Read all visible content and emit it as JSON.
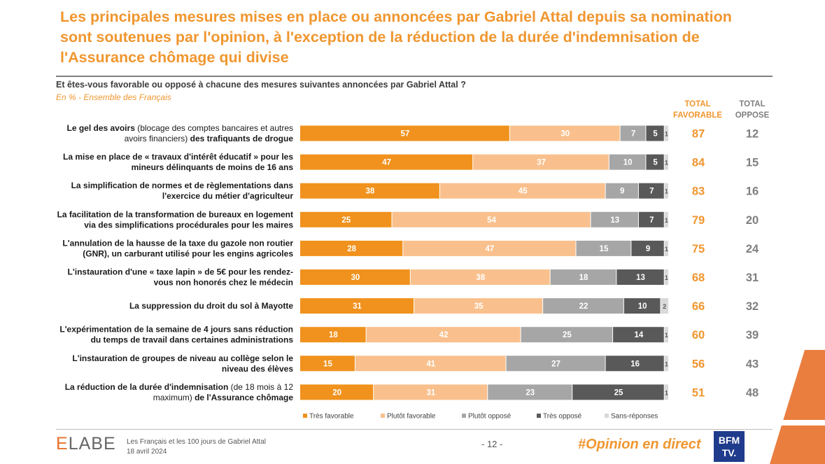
{
  "header": {
    "title": "Les principales mesures mises en place ou annoncées par Gabriel Attal depuis sa nomination sont soutenues par l'opinion, à l'exception de la réduction de la durée d'indemnisation de l'Assurance chômage qui divise",
    "question": "Et êtes-vous favorable ou opposé à chacune des mesures suivantes annoncées par Gabriel Attal ?",
    "base": "En % - Ensemble des Français"
  },
  "columns": {
    "total_favorable": "TOTAL FAVORABLE",
    "total_oppose": "TOTAL OPPOSE"
  },
  "colors": {
    "tres_favorable": "#f0921d",
    "plutot_favorable": "#f9c08d",
    "plutot_oppose": "#a6a6a6",
    "tres_oppose": "#595959",
    "sans_reponses": "#d9d9d9",
    "accent": "#f0962f"
  },
  "chart_data": {
    "type": "bar",
    "orientation": "horizontal",
    "stacked": true,
    "categories": [
      {
        "bold1": "Le gel des avoirs",
        "normal": " (blocage des comptes bancaires et autres avoirs financiers)",
        "bold2": " des trafiquants de drogue"
      },
      {
        "bold1": "La mise en place de « travaux d'intérêt éducatif » pour les mineurs délinquants de moins de 16 ans",
        "normal": "",
        "bold2": ""
      },
      {
        "bold1": "La simplification de normes et de règlementations dans l'exercice du métier d'agriculteur",
        "normal": "",
        "bold2": ""
      },
      {
        "bold1": "La facilitation de la transformation de bureaux en logement via des simplifications procédurales pour les maires",
        "normal": "",
        "bold2": ""
      },
      {
        "bold1": "L'annulation de la hausse de la taxe du gazole non routier (GNR), un carburant utilisé pour les engins agricoles",
        "normal": "",
        "bold2": ""
      },
      {
        "bold1": "L'instauration d'une « taxe lapin » de 5€ pour les rendez-vous non honorés chez le médecin",
        "normal": "",
        "bold2": ""
      },
      {
        "bold1": "La suppression du droit du sol à Mayotte",
        "normal": "",
        "bold2": ""
      },
      {
        "bold1": "L'expérimentation de la semaine de 4 jours sans réduction du temps de travail dans certaines administrations",
        "normal": "",
        "bold2": ""
      },
      {
        "bold1": "L'instauration de groupes de niveau au collège selon le niveau des élèves",
        "normal": "",
        "bold2": ""
      },
      {
        "bold1": "La réduction de la durée d'indemnisation",
        "normal": " (de 18 mois à 12 maximum)",
        "bold2": " de l'Assurance chômage"
      }
    ],
    "label_lines": [
      [
        [
          "Le gel des avoirs",
          "b"
        ],
        [
          " (blocage des comptes bancaires et autres",
          "n"
        ],
        [
          "|avoirs financiers)",
          "n"
        ],
        [
          " des trafiquants de drogue",
          "b"
        ]
      ],
      [
        [
          "La mise en place de « travaux d'intérêt éducatif » pour les",
          "b"
        ],
        [
          "|mineurs délinquants de moins de 16 ans",
          "b"
        ]
      ],
      [
        [
          "La simplification de normes et de règlementations dans",
          "b"
        ],
        [
          "|l'exercice du métier d'agriculteur",
          "b"
        ]
      ],
      [
        [
          "La facilitation de la transformation de bureaux en logement",
          "b"
        ],
        [
          "|via des simplifications procédurales pour les maires",
          "b"
        ]
      ],
      [
        [
          "L'annulation de la hausse de la taxe du gazole non routier",
          "b"
        ],
        [
          "|(GNR), un carburant utilisé pour les engins agricoles",
          "b"
        ]
      ],
      [
        [
          "L'instauration d'une « taxe lapin » de 5€ pour les rendez-",
          "b"
        ],
        [
          "|vous non honorés chez le médecin",
          "b"
        ]
      ],
      [
        [
          "La suppression du droit du sol à Mayotte",
          "b"
        ]
      ],
      [
        [
          "L'expérimentation de la semaine de 4 jours sans réduction",
          "b"
        ],
        [
          "|du temps de travail dans certaines administrations",
          "b"
        ]
      ],
      [
        [
          "L'instauration de groupes de niveau au collège selon le",
          "b"
        ],
        [
          "|niveau des élèves",
          "b"
        ]
      ],
      [
        [
          "La réduction de la durée d'indemnisation",
          "b"
        ],
        [
          " (de 18 mois à 12",
          "n"
        ],
        [
          "|maximum)",
          "n"
        ],
        [
          " de l'Assurance chômage",
          "b"
        ]
      ]
    ],
    "series": [
      {
        "name": "Très favorable",
        "values": [
          57,
          47,
          38,
          25,
          28,
          30,
          31,
          18,
          15,
          20
        ]
      },
      {
        "name": "Plutôt favorable",
        "values": [
          30,
          37,
          45,
          54,
          47,
          38,
          35,
          42,
          41,
          31
        ]
      },
      {
        "name": "Plutôt opposé",
        "values": [
          7,
          10,
          9,
          13,
          15,
          18,
          22,
          25,
          27,
          23
        ]
      },
      {
        "name": "Très opposé",
        "values": [
          5,
          5,
          7,
          7,
          9,
          13,
          10,
          14,
          16,
          25
        ]
      },
      {
        "name": "Sans-réponses",
        "values": [
          1,
          1,
          1,
          1,
          1,
          1,
          2,
          1,
          1,
          1
        ]
      }
    ],
    "total_favorable": [
      87,
      84,
      83,
      79,
      75,
      68,
      66,
      60,
      56,
      51
    ],
    "total_oppose": [
      12,
      15,
      16,
      20,
      24,
      31,
      32,
      39,
      43,
      48
    ],
    "unit": "%",
    "xlim": [
      0,
      100
    ],
    "legend_position": "bottom"
  },
  "footer": {
    "brand_prefix": "E",
    "brand_rest": "LABE",
    "study": "Les Français et les 100 jours de Gabriel Attal",
    "date": "18 avril 2024",
    "page": "- 12 -",
    "hashtag": "#Opinion en direct",
    "partner_line1": "BFM",
    "partner_line2": "TV."
  }
}
